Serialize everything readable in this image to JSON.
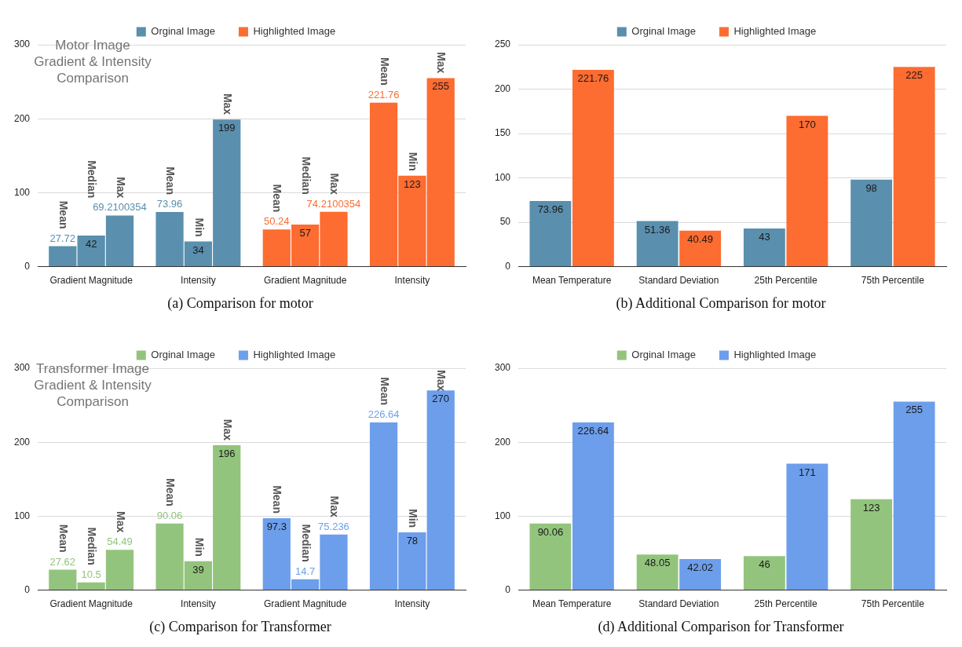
{
  "chart_data": [
    {
      "type": "bar",
      "title": "Motor Image Gradient & Intensity Comparison",
      "categories": [
        "Gradient Magnitude",
        "Intensity",
        "Gradient Magnitude",
        "Intensity"
      ],
      "series": [
        {
          "name": "Orginal Image",
          "color": "#5a8fae",
          "values": [
            27.72,
            73.96,
            null,
            null
          ]
        },
        {
          "color": "#5a8fae",
          "values": [
            42,
            34,
            null,
            null
          ]
        },
        {
          "color": "#5a8fae",
          "values": [
            69.2100354,
            199,
            null,
            null
          ]
        },
        {
          "name": "Highlighted Image",
          "color": "#fd6c31",
          "values": [
            null,
            null,
            50.24,
            221.76
          ]
        },
        {
          "color": "#fd6c31",
          "values": [
            null,
            null,
            57,
            123
          ]
        },
        {
          "color": "#fd6c31",
          "values": [
            null,
            null,
            74.2100354,
            255
          ]
        }
      ],
      "ylim": [
        0,
        300
      ],
      "yticks": [
        0,
        100,
        200,
        300
      ],
      "grid": "y",
      "legend": "top",
      "data_labels": true,
      "annotations": [
        "Mean",
        "Median",
        "Max",
        "Mean",
        "Min",
        "Max",
        "Mean",
        "Median",
        "Max",
        "Mean",
        "Min",
        "Max",
        "(a) Comparison for motor"
      ]
    },
    {
      "type": "bar",
      "categories": [
        "Mean Temperature",
        "Standard Deviation",
        "25th Percentile",
        "75th Percentile"
      ],
      "series": [
        {
          "name": "Orginal Image",
          "color": "#5a8fae",
          "values": [
            73.96,
            51.36,
            43,
            98
          ]
        },
        {
          "name": "Highlighted Image",
          "color": "#fd6c31",
          "values": [
            221.76,
            40.49,
            170,
            225
          ]
        }
      ],
      "ylim": [
        0,
        250
      ],
      "yticks": [
        0,
        50,
        100,
        150,
        200,
        250
      ],
      "grid": "y",
      "legend": "top",
      "data_labels": true,
      "annotations": [
        "(b) Additional Comparison for motor"
      ]
    },
    {
      "type": "bar",
      "title": "Transformer Image Gradient & Intensity Comparison",
      "categories": [
        "Gradient Magnitude",
        "Intensity",
        "Gradient Magnitude",
        "Intensity"
      ],
      "series": [
        {
          "name": "Orginal Image",
          "color": "#93c47d",
          "values": [
            27.62,
            90.06,
            null,
            null
          ]
        },
        {
          "color": "#93c47d",
          "values": [
            10.5,
            39,
            null,
            null
          ]
        },
        {
          "color": "#93c47d",
          "values": [
            54.49,
            196,
            null,
            null
          ]
        },
        {
          "name": "Highlighted Image",
          "color": "#6d9eeb",
          "values": [
            null,
            null,
            97.3,
            226.64
          ]
        },
        {
          "color": "#6d9eeb",
          "values": [
            null,
            null,
            14.7,
            78
          ]
        },
        {
          "color": "#6d9eeb",
          "values": [
            null,
            null,
            75.236,
            270
          ]
        }
      ],
      "ylim": [
        0,
        300
      ],
      "yticks": [
        0,
        100,
        200,
        300
      ],
      "grid": "y",
      "legend": "top",
      "data_labels": true,
      "annotations": [
        "Mean",
        "Median",
        "Max",
        "Mean",
        "Min",
        "Max",
        "Mean",
        "Median",
        "Max",
        "Mean",
        "Min",
        "Max",
        "(c) Comparison for Transformer"
      ]
    },
    {
      "type": "bar",
      "categories": [
        "Mean Temperature",
        "Standard Deviation",
        "25th Percentile",
        "75th Percentile"
      ],
      "series": [
        {
          "name": "Orginal Image",
          "color": "#93c47d",
          "values": [
            90.06,
            48.05,
            46,
            123
          ]
        },
        {
          "name": "Highlighted Image",
          "color": "#6d9eeb",
          "values": [
            226.64,
            42.02,
            171,
            255
          ]
        }
      ],
      "ylim": [
        0,
        300
      ],
      "yticks": [
        0,
        100,
        200,
        300
      ],
      "grid": "y",
      "legend": "top",
      "data_labels": true,
      "annotations": [
        "(d) Additional Comparison for Transformer"
      ]
    }
  ]
}
